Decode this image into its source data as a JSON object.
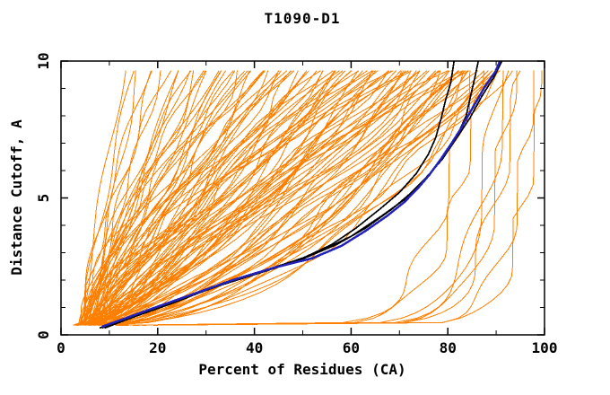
{
  "chart_data": {
    "type": "line",
    "title": "T1090-D1",
    "xlabel": "Percent of Residues (CA)",
    "ylabel": "Distance Cutoff, A",
    "xlim": [
      0,
      100
    ],
    "ylim": [
      0,
      10
    ],
    "x_major_ticks": [
      0,
      20,
      40,
      60,
      80,
      100
    ],
    "x_minor_ticks": [
      10,
      30,
      50,
      70,
      90
    ],
    "y_major_ticks": [
      0,
      5,
      10
    ],
    "y_minor_ticks": [
      1,
      2,
      3,
      4,
      6,
      7,
      8,
      9
    ],
    "grid": false,
    "legend": "none",
    "frame": "closed box, ticks pointing inward on all four sides",
    "colors": {
      "predictions": "#FF8000",
      "highlight_black": "#000000",
      "highlight_blue": "#2222BB",
      "axis": "#000000",
      "background": "#FFFFFF"
    },
    "curve_y_range": [
      0.35,
      9.65
    ],
    "prediction_curve_model": "x(y) = x0 + (xtop - x0) * t^p, t = (y - y_start)/(y_end - y_start); each entry is [x0, xtop, p]; orange prediction curves rise from lower-left to upper-right",
    "prediction_curves": [
      [
        4,
        13,
        1.1
      ],
      [
        4.5,
        15,
        1.2
      ],
      [
        5,
        16,
        0.9
      ],
      [
        4,
        18,
        1.3
      ],
      [
        5.5,
        19,
        1.0
      ],
      [
        6,
        21,
        1.15
      ],
      [
        4.5,
        22,
        1.4
      ],
      [
        5,
        24,
        0.85
      ],
      [
        6.5,
        25,
        1.2
      ],
      [
        4,
        26,
        1.0
      ],
      [
        5.5,
        27,
        1.5
      ],
      [
        6,
        28,
        0.9
      ],
      [
        4.5,
        29,
        1.25
      ],
      [
        5,
        30,
        1.1
      ],
      [
        4,
        31,
        0.95
      ],
      [
        5,
        32,
        1.3
      ],
      [
        6,
        33,
        0.8
      ],
      [
        4.5,
        34,
        1.45
      ],
      [
        5.5,
        35,
        1.0
      ],
      [
        6.5,
        36,
        1.2
      ],
      [
        4,
        37,
        0.75
      ],
      [
        5,
        38,
        1.5
      ],
      [
        6,
        39,
        1.05
      ],
      [
        4.5,
        40,
        0.85
      ],
      [
        5.5,
        41,
        1.3
      ],
      [
        6.5,
        42,
        0.95
      ],
      [
        4,
        43,
        1.6
      ],
      [
        5,
        44,
        1.1
      ],
      [
        6,
        45,
        0.8
      ],
      [
        7,
        35,
        1.35
      ],
      [
        7.5,
        42,
        0.7
      ],
      [
        8,
        38,
        1.2
      ],
      [
        4,
        46,
        0.9
      ],
      [
        5,
        47,
        1.25
      ],
      [
        6,
        48,
        0.7
      ],
      [
        4.5,
        49,
        1.4
      ],
      [
        5.5,
        50,
        1.0
      ],
      [
        6.5,
        51,
        0.8
      ],
      [
        7,
        52,
        1.2
      ],
      [
        4,
        53,
        0.65
      ],
      [
        5,
        54,
        1.35
      ],
      [
        6,
        55,
        0.95
      ],
      [
        7.5,
        56,
        0.75
      ],
      [
        4.5,
        57,
        1.15
      ],
      [
        5.5,
        58,
        0.85
      ],
      [
        6.5,
        59,
        1.3
      ],
      [
        7,
        60,
        0.7
      ],
      [
        8,
        50,
        1.0
      ],
      [
        8.5,
        55,
        1.45
      ],
      [
        4,
        56,
        0.6
      ],
      [
        5,
        48,
        1.55
      ],
      [
        6,
        52,
        1.05
      ],
      [
        7,
        58,
        0.9
      ],
      [
        8,
        60,
        1.2
      ],
      [
        4,
        61,
        0.8
      ],
      [
        5,
        62,
        1.1
      ],
      [
        6,
        63,
        0.65
      ],
      [
        7,
        64,
        1.3
      ],
      [
        8,
        65,
        0.9
      ],
      [
        4.5,
        66,
        0.7
      ],
      [
        5.5,
        67,
        1.2
      ],
      [
        6.5,
        68,
        0.8
      ],
      [
        7.5,
        69,
        1.0
      ],
      [
        8.5,
        70,
        0.6
      ],
      [
        4,
        71,
        1.25
      ],
      [
        5,
        72,
        0.85
      ],
      [
        6,
        73,
        1.05
      ],
      [
        7,
        74,
        0.7
      ],
      [
        8,
        75,
        0.95
      ],
      [
        9,
        62,
        1.4
      ],
      [
        4.5,
        64,
        0.55
      ],
      [
        5.5,
        66,
        1.5
      ],
      [
        6.5,
        70,
        0.75
      ],
      [
        7.5,
        72,
        1.15
      ],
      [
        8.5,
        74,
        0.65
      ],
      [
        9.5,
        68,
        0.9
      ],
      [
        4,
        69,
        1.35
      ],
      [
        5,
        73,
        0.6
      ],
      [
        6,
        75,
        1.1
      ],
      [
        7,
        67,
        0.8
      ],
      [
        4,
        76,
        0.6
      ],
      [
        5,
        77,
        0.9
      ],
      [
        6,
        78,
        0.5
      ],
      [
        7,
        79,
        1.1
      ],
      [
        8,
        80,
        0.7
      ],
      [
        9,
        81,
        0.55
      ],
      [
        4.5,
        82,
        0.85
      ],
      [
        5.5,
        83,
        0.6
      ],
      [
        6.5,
        84,
        1.0
      ],
      [
        7.5,
        85,
        0.5
      ],
      [
        8.5,
        86,
        0.75
      ],
      [
        9.5,
        87,
        0.55
      ],
      [
        4,
        88,
        0.9
      ],
      [
        5,
        89,
        0.6
      ],
      [
        6,
        90,
        0.45
      ],
      [
        7,
        91,
        0.8
      ],
      [
        8,
        92,
        0.5
      ],
      [
        9,
        80,
        1.2
      ],
      [
        10,
        84,
        0.65
      ],
      [
        4.5,
        78,
        0.45
      ],
      [
        5.5,
        82,
        1.05
      ],
      [
        6.5,
        86,
        0.55
      ],
      [
        7.5,
        88,
        0.7
      ],
      [
        8.5,
        90,
        0.48
      ],
      [
        9.5,
        92,
        0.6
      ],
      [
        10,
        76,
        0.95
      ],
      [
        4,
        81,
        0.5
      ],
      [
        5,
        85,
        0.72
      ],
      [
        6,
        89,
        0.52
      ],
      [
        7,
        83,
        0.62
      ],
      [
        10,
        84,
        0.1
      ],
      [
        12,
        86,
        0.09
      ],
      [
        14,
        91,
        0.08
      ],
      [
        15,
        92,
        0.085
      ],
      [
        16,
        93,
        0.07
      ],
      [
        13,
        94,
        0.075
      ],
      [
        18,
        97,
        0.06
      ],
      [
        17,
        98.5,
        0.055
      ]
    ],
    "highlighted_curves": [
      {
        "name": "model-black-1",
        "color_key": "highlight_black",
        "width": 1.7,
        "points": [
          [
            8,
            0.25
          ],
          [
            11,
            0.45
          ],
          [
            17,
            0.85
          ],
          [
            25,
            1.35
          ],
          [
            33,
            1.85
          ],
          [
            42,
            2.35
          ],
          [
            50,
            2.8
          ],
          [
            56,
            3.3
          ],
          [
            61,
            3.9
          ],
          [
            66,
            4.6
          ],
          [
            70,
            5.2
          ],
          [
            73.5,
            5.9
          ],
          [
            76,
            6.6
          ],
          [
            77.5,
            7.2
          ],
          [
            78.6,
            7.9
          ],
          [
            79.6,
            8.6
          ],
          [
            80.6,
            9.2
          ],
          [
            81.3,
            10
          ]
        ]
      },
      {
        "name": "model-black-2",
        "color_key": "highlight_black",
        "width": 1.7,
        "points": [
          [
            8.5,
            0.25
          ],
          [
            13,
            0.6
          ],
          [
            20,
            1.0
          ],
          [
            28,
            1.5
          ],
          [
            36,
            2.0
          ],
          [
            45,
            2.5
          ],
          [
            53,
            3.0
          ],
          [
            60,
            3.6
          ],
          [
            66,
            4.3
          ],
          [
            71.5,
            5.0
          ],
          [
            76,
            5.8
          ],
          [
            79.5,
            6.6
          ],
          [
            82,
            7.3
          ],
          [
            83.8,
            8.0
          ],
          [
            84.8,
            8.8
          ],
          [
            85.6,
            9.4
          ],
          [
            86.3,
            10
          ]
        ]
      },
      {
        "name": "model-black-3",
        "color_key": "highlight_black",
        "width": 1.7,
        "points": [
          [
            9,
            0.25
          ],
          [
            15,
            0.65
          ],
          [
            23,
            1.15
          ],
          [
            31,
            1.7
          ],
          [
            40,
            2.2
          ],
          [
            49,
            2.7
          ],
          [
            57,
            3.3
          ],
          [
            63,
            3.9
          ],
          [
            68.5,
            4.6
          ],
          [
            72.5,
            5.2
          ],
          [
            75.8,
            5.8
          ],
          [
            78.8,
            6.4
          ],
          [
            81.5,
            7.1
          ],
          [
            84.5,
            7.9
          ],
          [
            87,
            8.7
          ],
          [
            89.5,
            9.4
          ],
          [
            91.2,
            10
          ]
        ]
      },
      {
        "name": "model-blue",
        "color_key": "highlight_blue",
        "width": 2.5,
        "points": [
          [
            8.5,
            0.3
          ],
          [
            12.5,
            0.55
          ],
          [
            19.5,
            1.0
          ],
          [
            27.5,
            1.5
          ],
          [
            35.5,
            2.0
          ],
          [
            44,
            2.45
          ],
          [
            52,
            2.8
          ],
          [
            58,
            3.25
          ],
          [
            63,
            3.8
          ],
          [
            67.5,
            4.35
          ],
          [
            71,
            4.85
          ],
          [
            73.8,
            5.35
          ],
          [
            76.2,
            5.85
          ],
          [
            78.5,
            6.4
          ],
          [
            80.8,
            7.0
          ],
          [
            82.6,
            7.5
          ],
          [
            84.2,
            8.0
          ],
          [
            85.8,
            8.5
          ],
          [
            87.8,
            9.1
          ],
          [
            89.8,
            9.6
          ],
          [
            90.8,
            10
          ]
        ]
      }
    ]
  }
}
